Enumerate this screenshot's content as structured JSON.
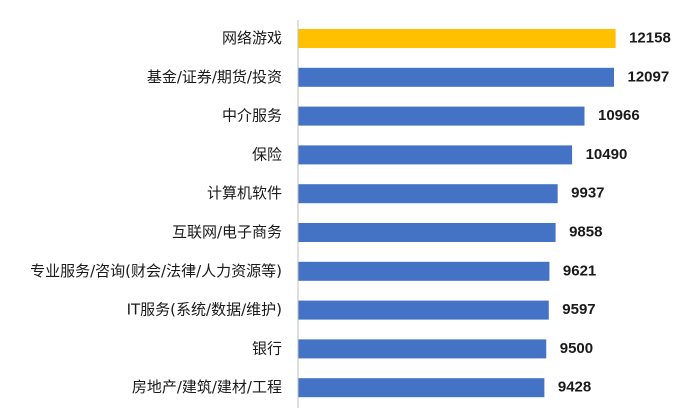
{
  "chart_data": {
    "type": "bar",
    "orientation": "horizontal",
    "categories": [
      "网络游戏",
      "基金/证券/期货/投资",
      "中介服务",
      "保险",
      "计算机软件",
      "互联网/电子商务",
      "专业服务/咨询(财会/法律/人力资源等)",
      "IT服务(系统/数据/维护)",
      "银行",
      "房地产/建筑/建材/工程"
    ],
    "values": [
      12158,
      12097,
      10966,
      10490,
      9937,
      9858,
      9621,
      9597,
      9500,
      9428
    ],
    "value_labels": [
      "12158",
      "12097",
      "10966",
      "10490",
      "9937",
      "9858",
      "9621",
      "9597",
      "9500",
      "9428"
    ],
    "xlim": [
      0,
      12500
    ],
    "grid": false,
    "legend": "none",
    "colors": {
      "default": "#4472c4",
      "highlight": "#ffc000",
      "highlight_index": 0,
      "axis": "#bfbfbf"
    }
  }
}
